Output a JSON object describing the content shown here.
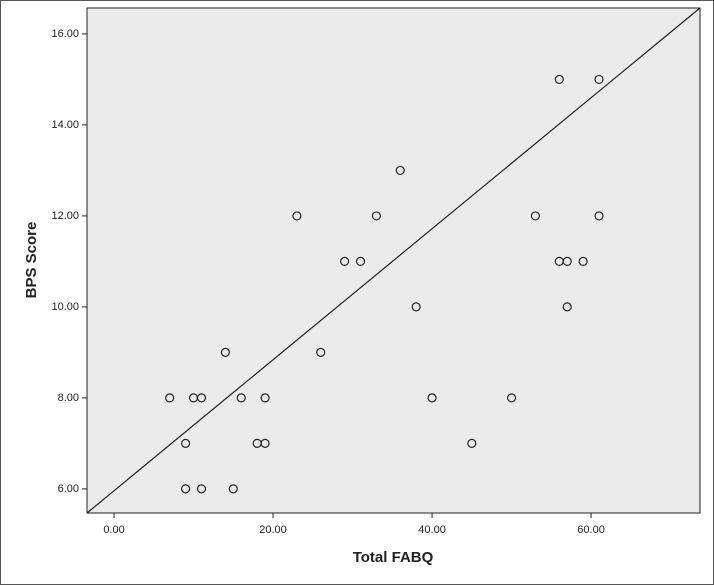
{
  "chart_data": {
    "type": "scatter",
    "x_label": "Total FABQ",
    "y_label": "BPS Score",
    "x": [
      7,
      9,
      9,
      10,
      11,
      11,
      14,
      15,
      16,
      18,
      19,
      19,
      23,
      26,
      29,
      31,
      33,
      36,
      38,
      40,
      45,
      50,
      53,
      56,
      56,
      57,
      57,
      59,
      61,
      61
    ],
    "y": [
      8,
      7,
      6,
      8,
      8,
      6,
      9,
      6,
      8,
      7,
      7,
      8,
      12,
      9,
      11,
      11,
      12,
      13,
      10,
      8,
      7,
      8,
      12,
      15,
      11,
      11,
      10,
      11,
      15,
      12
    ],
    "fit_line": {
      "x": [
        -3.4,
        73.7
      ],
      "y": [
        5.47,
        16.57
      ]
    },
    "xlim": [
      -3.4,
      73.7
    ],
    "ylim": [
      5.47,
      16.57
    ],
    "xticks": [
      {
        "value": 0,
        "label": "0.00"
      },
      {
        "value": 20,
        "label": "20.00"
      },
      {
        "value": 40,
        "label": "40.00"
      },
      {
        "value": 60,
        "label": "60.00"
      }
    ],
    "yticks": [
      {
        "value": 6,
        "label": "6.00"
      },
      {
        "value": 8,
        "label": "8.00"
      },
      {
        "value": 10,
        "label": "10.00"
      },
      {
        "value": 12,
        "label": "12.00"
      },
      {
        "value": 14,
        "label": "14.00"
      },
      {
        "value": 16,
        "label": "16.00"
      }
    ],
    "grid": false
  }
}
